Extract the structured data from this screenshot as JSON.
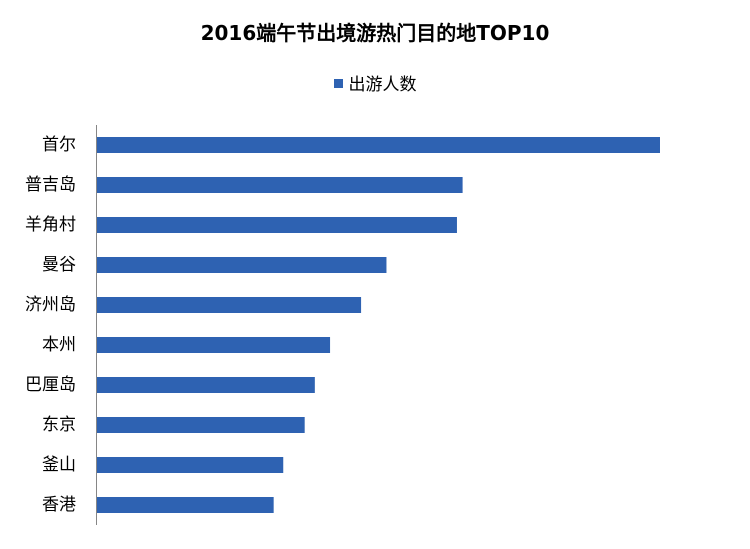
{
  "chart_data": {
    "type": "bar",
    "orientation": "horizontal",
    "title": "2016端午节出境游热门目的地TOP10",
    "categories": [
      "首尔",
      "普吉岛",
      "羊角村",
      "曼谷",
      "济州岛",
      "本州",
      "巴厘岛",
      "东京",
      "釜山",
      "香港"
    ],
    "series": [
      {
        "name": "出游人数",
        "color": "#2E62B2",
        "values": [
          100,
          65,
          64,
          51.5,
          47,
          41.5,
          38.8,
          37,
          33.2,
          31.5
        ]
      }
    ],
    "xlim": [
      0,
      100
    ],
    "grid": false,
    "legend_position": "top-center",
    "value_axis_labels": false
  }
}
